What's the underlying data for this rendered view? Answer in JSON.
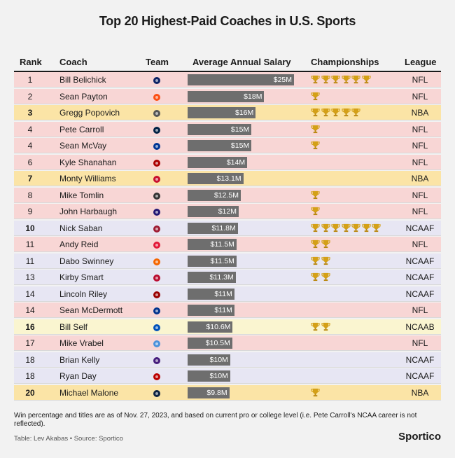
{
  "chart_data": {
    "type": "table",
    "title": "Top 20 Highest-Paid Coaches in U.S. Sports",
    "columns": [
      "Rank",
      "Coach",
      "Team",
      "Average Annual Salary",
      "Championships",
      "League"
    ],
    "rows": [
      {
        "rank": "1",
        "coach": "Bill Belichick",
        "team_icon": "patriots-logo-icon",
        "salary_label": "$25M",
        "salary": 25,
        "championships": 6,
        "league": "NFL"
      },
      {
        "rank": "2",
        "coach": "Sean Payton",
        "team_icon": "broncos-logo-icon",
        "salary_label": "$18M",
        "salary": 18,
        "championships": 1,
        "league": "NFL"
      },
      {
        "rank": "3",
        "coach": "Gregg Popovich",
        "team_icon": "spurs-logo-icon",
        "salary_label": "$16M",
        "salary": 16,
        "championships": 5,
        "league": "NBA"
      },
      {
        "rank": "4",
        "coach": "Pete Carroll",
        "team_icon": "seahawks-logo-icon",
        "salary_label": "$15M",
        "salary": 15,
        "championships": 1,
        "league": "NFL"
      },
      {
        "rank": "4",
        "coach": "Sean McVay",
        "team_icon": "rams-logo-icon",
        "salary_label": "$15M",
        "salary": 15,
        "championships": 1,
        "league": "NFL"
      },
      {
        "rank": "6",
        "coach": "Kyle Shanahan",
        "team_icon": "49ers-logo-icon",
        "salary_label": "$14M",
        "salary": 14,
        "championships": 0,
        "league": "NFL"
      },
      {
        "rank": "7",
        "coach": "Monty Williams",
        "team_icon": "pistons-logo-icon",
        "salary_label": "$13.1M",
        "salary": 13.1,
        "championships": 0,
        "league": "NBA"
      },
      {
        "rank": "8",
        "coach": "Mike Tomlin",
        "team_icon": "steelers-logo-icon",
        "salary_label": "$12.5M",
        "salary": 12.5,
        "championships": 1,
        "league": "NFL"
      },
      {
        "rank": "9",
        "coach": "John Harbaugh",
        "team_icon": "ravens-logo-icon",
        "salary_label": "$12M",
        "salary": 12,
        "championships": 1,
        "league": "NFL"
      },
      {
        "rank": "10",
        "coach": "Nick Saban",
        "team_icon": "alabama-logo-icon",
        "salary_label": "$11.8M",
        "salary": 11.8,
        "championships": 7,
        "league": "NCAAF"
      },
      {
        "rank": "11",
        "coach": "Andy Reid",
        "team_icon": "chiefs-logo-icon",
        "salary_label": "$11.5M",
        "salary": 11.5,
        "championships": 2,
        "league": "NFL"
      },
      {
        "rank": "11",
        "coach": "Dabo Swinney",
        "team_icon": "clemson-logo-icon",
        "salary_label": "$11.5M",
        "salary": 11.5,
        "championships": 2,
        "league": "NCAAF"
      },
      {
        "rank": "13",
        "coach": "Kirby Smart",
        "team_icon": "georgia-logo-icon",
        "salary_label": "$11.3M",
        "salary": 11.3,
        "championships": 2,
        "league": "NCAAF"
      },
      {
        "rank": "14",
        "coach": "Lincoln Riley",
        "team_icon": "usc-logo-icon",
        "salary_label": "$11M",
        "salary": 11,
        "championships": 0,
        "league": "NCAAF"
      },
      {
        "rank": "14",
        "coach": "Sean McDermott",
        "team_icon": "bills-logo-icon",
        "salary_label": "$11M",
        "salary": 11,
        "championships": 0,
        "league": "NFL"
      },
      {
        "rank": "16",
        "coach": "Bill Self",
        "team_icon": "kansas-logo-icon",
        "salary_label": "$10.6M",
        "salary": 10.6,
        "championships": 2,
        "league": "NCAAB"
      },
      {
        "rank": "17",
        "coach": "Mike Vrabel",
        "team_icon": "titans-logo-icon",
        "salary_label": "$10.5M",
        "salary": 10.5,
        "championships": 0,
        "league": "NFL"
      },
      {
        "rank": "18",
        "coach": "Brian Kelly",
        "team_icon": "lsu-logo-icon",
        "salary_label": "$10M",
        "salary": 10,
        "championships": 0,
        "league": "NCAAF"
      },
      {
        "rank": "18",
        "coach": "Ryan Day",
        "team_icon": "ohio-state-logo-icon",
        "salary_label": "$10M",
        "salary": 10,
        "championships": 0,
        "league": "NCAAF"
      },
      {
        "rank": "20",
        "coach": "Michael Malone",
        "team_icon": "nuggets-logo-icon",
        "salary_label": "$9.8M",
        "salary": 9.8,
        "championships": 1,
        "league": "NBA"
      }
    ],
    "salary_range": [
      0,
      25
    ],
    "league_colors": {
      "NFL": "#f8d6d5",
      "NBA": "#fbe4a6",
      "NCAAF": "#e7e6f3",
      "NCAAB": "#faf5d0"
    },
    "bar_color": "#6e6e6e",
    "trophy_color": "#d4a017"
  },
  "footnote": "Win percentage and titles are as of Nov. 27, 2023, and based on current pro or college level (i.e. Pete Carroll's NCAA career is not reflected).",
  "credit": "Table: Lev Akabas • Source: Sportico",
  "brand": "Sportico"
}
